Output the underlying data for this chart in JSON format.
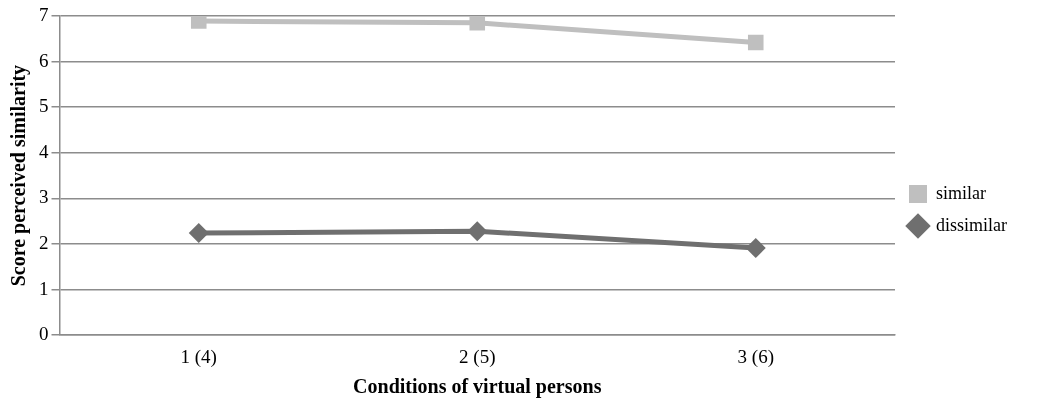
{
  "chart_data": {
    "type": "line",
    "xlabel": "Conditions of virtual persons",
    "ylabel": "Score perceived similarity",
    "categories": [
      "1 (4)",
      "2 (5)",
      "3 (6)"
    ],
    "series": [
      {
        "name": "similar",
        "color": "#bfbfbf",
        "marker": "square",
        "values": [
          6.89,
          6.85,
          6.42
        ]
      },
      {
        "name": "dissimilar",
        "color": "#6f6f6f",
        "marker": "diamond",
        "values": [
          2.24,
          2.28,
          1.91
        ]
      }
    ],
    "ylim": [
      0,
      7
    ],
    "yticks": [
      0,
      1,
      2,
      3,
      4,
      5,
      6,
      7
    ],
    "grid": "y",
    "legend": "right",
    "line_style": "solid"
  }
}
